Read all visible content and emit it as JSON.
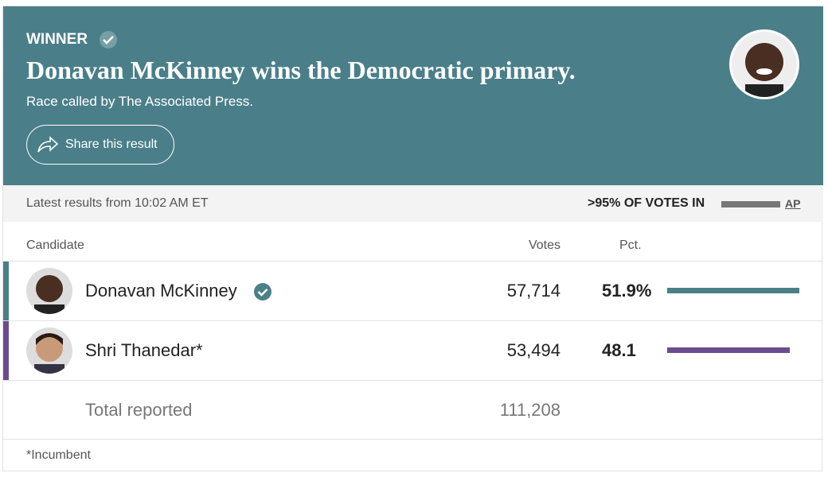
{
  "header": {
    "label": "WINNER",
    "headline": "Donavan McKinney wins the Democratic primary.",
    "subline": "Race called by The Associated Press.",
    "share_button": "Share this result"
  },
  "status": {
    "latest": "Latest results from 10:02 AM ET",
    "votes_in": ">95% OF VOTES IN",
    "source": "AP"
  },
  "table": {
    "columns": [
      "Candidate",
      "Votes",
      "Pct."
    ],
    "rows": [
      {
        "name": "Donavan McKinney",
        "votes": "57,714",
        "pct": {
          "value": 51.9,
          "label": "51.9%"
        },
        "color": "#4a8088"
      },
      {
        "name": "Shri Thanedar*",
        "votes": "53,494",
        "pct": 48.1,
        "color": "#6a4c8e"
      }
    ],
    "total_label": "Total reported",
    "total_votes": "111,208"
  },
  "footnote": "*Incumbent"
}
